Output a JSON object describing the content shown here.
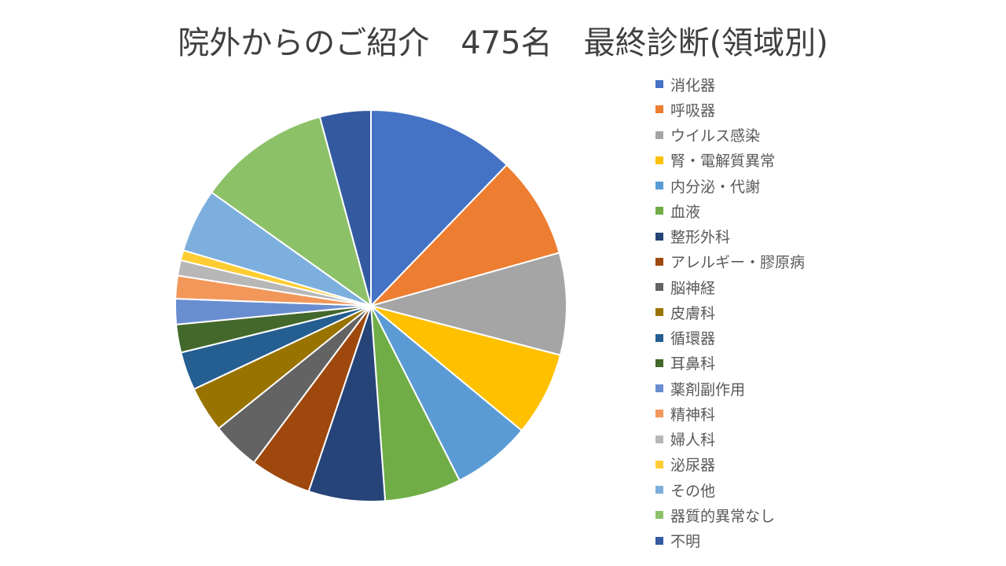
{
  "chart_data": {
    "type": "pie",
    "title": "院外からのご紹介　475名　最終診断(領域別)",
    "legend_position": "right",
    "slices": [
      {
        "label": "消化器",
        "value": 58,
        "color": "#4472C4"
      },
      {
        "label": "呼吸器",
        "value": 40,
        "color": "#ED7D31"
      },
      {
        "label": "ウイルス感染",
        "value": 40,
        "color": "#A5A5A5"
      },
      {
        "label": "腎・電解質異常",
        "value": 33,
        "color": "#FFC000"
      },
      {
        "label": "内分泌・代謝",
        "value": 31,
        "color": "#5B9BD5"
      },
      {
        "label": "血液",
        "value": 30,
        "color": "#70AD47"
      },
      {
        "label": "整形外科",
        "value": 30,
        "color": "#264478"
      },
      {
        "label": "アレルギー・膠原病",
        "value": 24,
        "color": "#9E480E"
      },
      {
        "label": "脳神経",
        "value": 19,
        "color": "#636363"
      },
      {
        "label": "皮膚科",
        "value": 18,
        "color": "#997300"
      },
      {
        "label": "循環器",
        "value": 15,
        "color": "#255E91"
      },
      {
        "label": "耳鼻科",
        "value": 11,
        "color": "#43682B"
      },
      {
        "label": "薬剤副作用",
        "value": 10,
        "color": "#698ED0"
      },
      {
        "label": "精神科",
        "value": 9,
        "color": "#F1975A"
      },
      {
        "label": "婦人科",
        "value": 6,
        "color": "#B7B7B7"
      },
      {
        "label": "泌尿器",
        "value": 4,
        "color": "#FFCD33"
      },
      {
        "label": "その他",
        "value": 25,
        "color": "#7CAFDD"
      },
      {
        "label": "器質的異常なし",
        "value": 52,
        "color": "#8CC168"
      },
      {
        "label": "不明",
        "value": 20,
        "color": "#335AA1"
      }
    ]
  }
}
